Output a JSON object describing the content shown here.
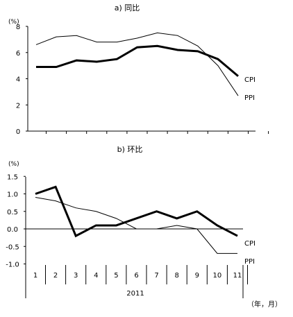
{
  "chart_data": [
    {
      "type": "line",
      "title": "a) 同比",
      "unit_label": "(%)",
      "ylim": [
        0,
        8
      ],
      "yticks": [
        "0",
        "2",
        "4",
        "6",
        "8"
      ],
      "x": [
        1,
        2,
        3,
        4,
        5,
        6,
        7,
        8,
        9,
        10,
        11
      ],
      "series": [
        {
          "name": "CPI",
          "color": "#000000",
          "values": [
            4.9,
            4.9,
            5.4,
            5.3,
            5.5,
            6.4,
            6.5,
            6.2,
            6.1,
            5.5,
            4.2
          ]
        },
        {
          "name": "PPI",
          "color": "#000000",
          "values": [
            6.6,
            7.2,
            7.3,
            6.8,
            6.8,
            7.1,
            7.5,
            7.3,
            6.5,
            5.0,
            2.7
          ]
        }
      ],
      "grid": false
    },
    {
      "type": "line",
      "title": "b) 环比",
      "unit_label": "(%)",
      "ylim": [
        -1.0,
        1.5
      ],
      "yticks": [
        "1.5",
        "1.0",
        "0.5",
        "0.0",
        "-0.5",
        "-1.0"
      ],
      "x": [
        1,
        2,
        3,
        4,
        5,
        6,
        7,
        8,
        9,
        10,
        11
      ],
      "categories": [
        "1",
        "2",
        "3",
        "4",
        "5",
        "6",
        "7",
        "8",
        "9",
        "10",
        "11"
      ],
      "year_label": "2011",
      "axis_unit": "（年，月）",
      "series": [
        {
          "name": "CPI",
          "color": "#000000",
          "values": [
            1.0,
            1.2,
            -0.2,
            0.1,
            0.1,
            0.3,
            0.5,
            0.3,
            0.5,
            0.1,
            -0.2
          ]
        },
        {
          "name": "PPI",
          "color": "#000000",
          "values": [
            0.9,
            0.8,
            0.6,
            0.5,
            0.3,
            0.0,
            0.0,
            0.1,
            0.0,
            -0.7,
            -0.7
          ]
        }
      ],
      "grid": false
    }
  ]
}
